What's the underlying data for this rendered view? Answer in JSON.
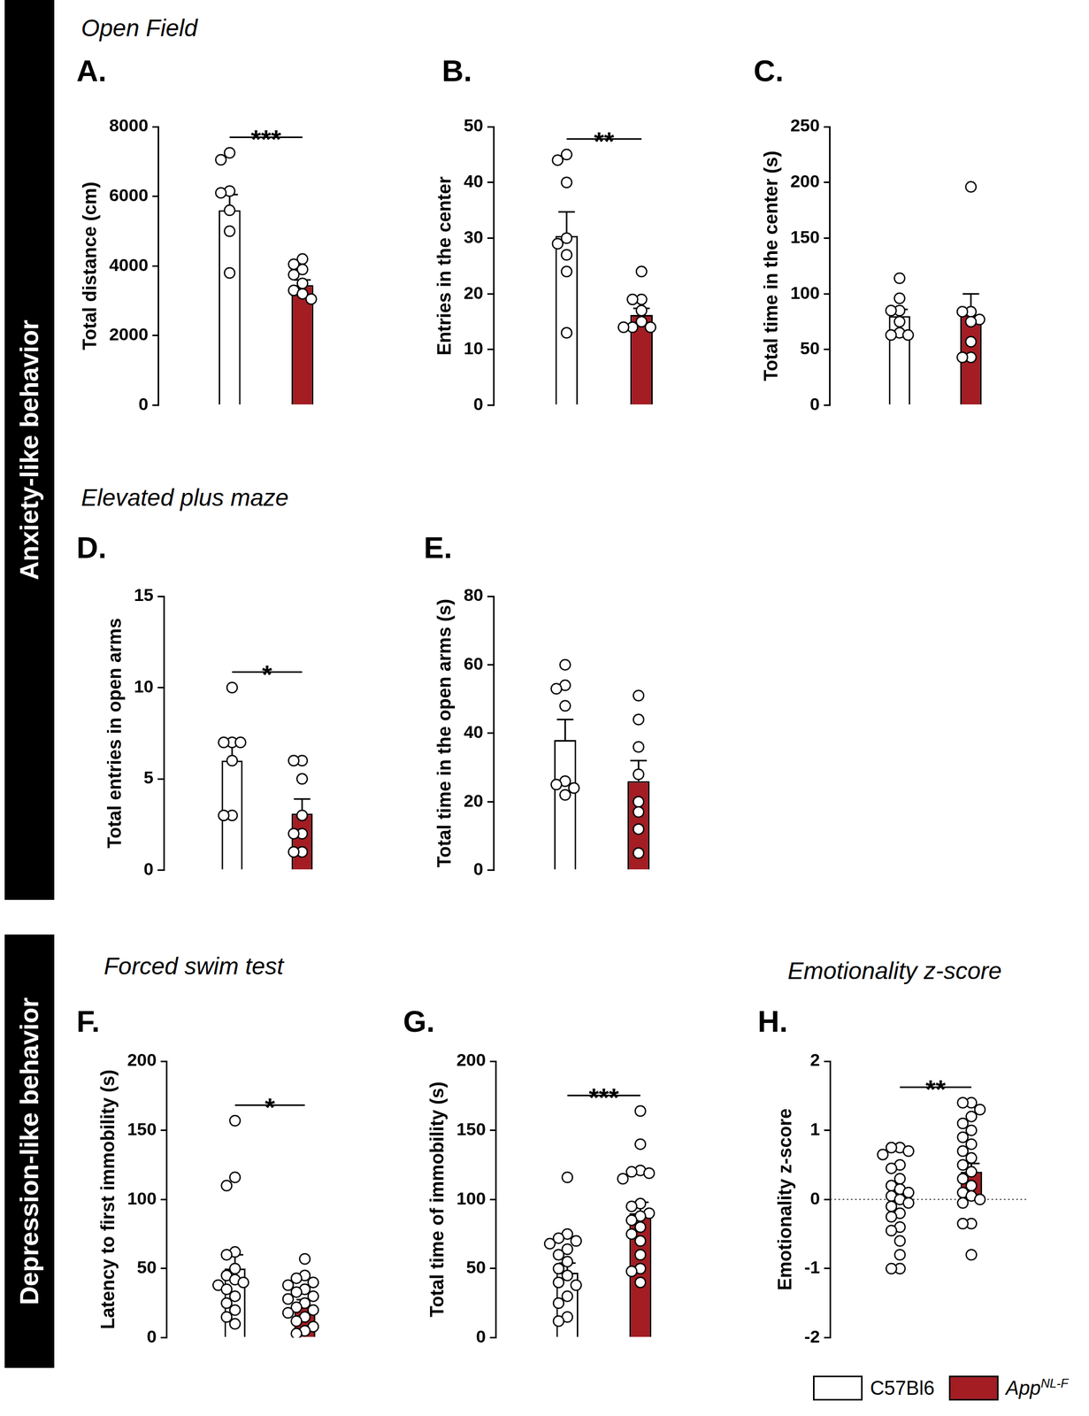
{
  "sections": [
    {
      "text": "Anxiety-like behavior"
    },
    {
      "text": "Depression-like behavior"
    }
  ],
  "groups": [
    {
      "name": "C57Bl6",
      "color": "#ffffff"
    },
    {
      "name": "App",
      "superscript": "NL-F",
      "color": "#a31d23"
    }
  ],
  "legend": "bottom right",
  "chart_data": [
    {
      "type": "bar",
      "title": "A.",
      "subtitle": "Open Field",
      "y_label": "Total distance (cm)",
      "values": [
        5600,
        3450
      ],
      "errors": [
        450,
        150
      ],
      "points": [
        [
          7250,
          7050,
          6150,
          6100,
          5600,
          5000,
          3800
        ],
        [
          4200,
          4050,
          3900,
          3750,
          3500,
          3300,
          3200,
          3050
        ]
      ],
      "ylim": [
        0,
        8000
      ],
      "yticks": [
        0,
        2000,
        4000,
        6000,
        8000
      ],
      "grid": false,
      "tick_labels": "y",
      "annotations": [
        {
          "text": "***"
        }
      ]
    },
    {
      "type": "bar",
      "title": "B.",
      "y_label": "Entries in the center",
      "values": [
        30.4,
        16.2
      ],
      "errors": [
        4.3,
        1.2
      ],
      "points": [
        [
          45,
          44,
          40,
          30,
          29,
          27,
          24,
          13
        ],
        [
          24,
          19,
          19,
          17,
          15,
          14,
          14,
          14
        ]
      ],
      "ylim": [
        0,
        50
      ],
      "yticks": [
        0,
        10,
        20,
        30,
        40,
        50
      ],
      "grid": false,
      "tick_labels": "y",
      "annotations": [
        {
          "text": "**"
        }
      ]
    },
    {
      "type": "bar",
      "title": "C.",
      "y_label": "Total time in the center (s)",
      "values": [
        80,
        81
      ],
      "errors": [
        6,
        19
      ],
      "points": [
        [
          114,
          96,
          85,
          85,
          75,
          65,
          63,
          63
        ],
        [
          196,
          84,
          84,
          77,
          75,
          57,
          43,
          43
        ]
      ],
      "ylim": [
        0,
        250
      ],
      "yticks": [
        0,
        50,
        100,
        150,
        200,
        250
      ],
      "grid": false,
      "tick_labels": "y",
      "annotations": []
    },
    {
      "type": "bar",
      "title": "D.",
      "subtitle": "Elevated plus maze",
      "y_label": "Total entries in open arms",
      "values": [
        6.0,
        3.1
      ],
      "errors": [
        0.9,
        0.8
      ],
      "points": [
        [
          10,
          7,
          7,
          7,
          6,
          3,
          3
        ],
        [
          6,
          6,
          5,
          3,
          2,
          2,
          1,
          1
        ]
      ],
      "ylim": [
        0,
        15
      ],
      "yticks": [
        0,
        5,
        10,
        15
      ],
      "grid": false,
      "tick_labels": "y",
      "annotations": [
        {
          "text": "*"
        }
      ]
    },
    {
      "type": "bar",
      "title": "E.",
      "y_label": "Total time in the open arms (s)",
      "values": [
        38,
        26
      ],
      "errors": [
        6,
        6
      ],
      "points": [
        [
          60,
          54,
          53,
          48,
          26,
          25,
          24,
          22
        ],
        [
          51,
          44,
          36,
          28,
          20,
          17,
          12,
          5
        ]
      ],
      "ylim": [
        0,
        80
      ],
      "yticks": [
        0,
        20,
        40,
        60,
        80
      ],
      "grid": false,
      "tick_labels": "y",
      "annotations": []
    },
    {
      "type": "bar",
      "title": "F.",
      "subtitle": "Forced swim test",
      "y_label": "Latency to first immobility (s)",
      "values": [
        50,
        24
      ],
      "errors": [
        10,
        3.5
      ],
      "points": [
        [
          157,
          116,
          110,
          62,
          60,
          50,
          45,
          42,
          40,
          38,
          35,
          30,
          25,
          20,
          15,
          10
        ],
        [
          57,
          45,
          43,
          40,
          38,
          35,
          33,
          30,
          28,
          25,
          22,
          20,
          18,
          15,
          12,
          8,
          5,
          3
        ]
      ],
      "ylim": [
        0,
        200
      ],
      "yticks": [
        0,
        50,
        100,
        150,
        200
      ],
      "grid": false,
      "tick_labels": "y",
      "annotations": [
        {
          "text": "*"
        }
      ]
    },
    {
      "type": "bar",
      "title": "G.",
      "y_label": "Total time of immobility (s)",
      "values": [
        47,
        90
      ],
      "errors": [
        7,
        8
      ],
      "points": [
        [
          116,
          75,
          72,
          70,
          68,
          64,
          60,
          55,
          50,
          45,
          40,
          38,
          30,
          25,
          15,
          12
        ],
        [
          164,
          140,
          121,
          120,
          119,
          115,
          97,
          95,
          90,
          88,
          85,
          80,
          75,
          70,
          60,
          50,
          48,
          40
        ]
      ],
      "ylim": [
        0,
        200
      ],
      "yticks": [
        0,
        50,
        100,
        150,
        200
      ],
      "grid": false,
      "tick_labels": "y",
      "annotations": [
        {
          "text": "***"
        }
      ]
    },
    {
      "type": "bar",
      "title": "H.",
      "subtitle": "Emotionality z-score",
      "y_label": "Emotionality z-score",
      "values": [
        -0.03,
        0.4
      ],
      "errors": [
        0.1,
        0.12
      ],
      "points": [
        [
          0.75,
          0.75,
          0.7,
          0.65,
          0.5,
          0.45,
          0.3,
          0.2,
          0.15,
          0.1,
          0.05,
          0.0,
          -0.05,
          -0.1,
          -0.2,
          -0.25,
          -0.4,
          -0.45,
          -0.6,
          -0.8,
          -1.0,
          -1.0
        ],
        [
          1.4,
          1.4,
          1.3,
          1.2,
          1.1,
          1.0,
          0.9,
          0.8,
          0.7,
          0.6,
          0.5,
          0.4,
          0.3,
          0.2,
          0.1,
          0.05,
          0.0,
          -0.05,
          -0.35,
          -0.35,
          -0.8
        ]
      ],
      "ylim": [
        -2,
        2
      ],
      "yticks": [
        -2,
        -1,
        0,
        1,
        2
      ],
      "grid": false,
      "tick_labels": "y",
      "annotations": [
        {
          "text": "**"
        },
        {
          "type": "hline",
          "y": 0,
          "line_style": "dotted"
        }
      ]
    }
  ]
}
